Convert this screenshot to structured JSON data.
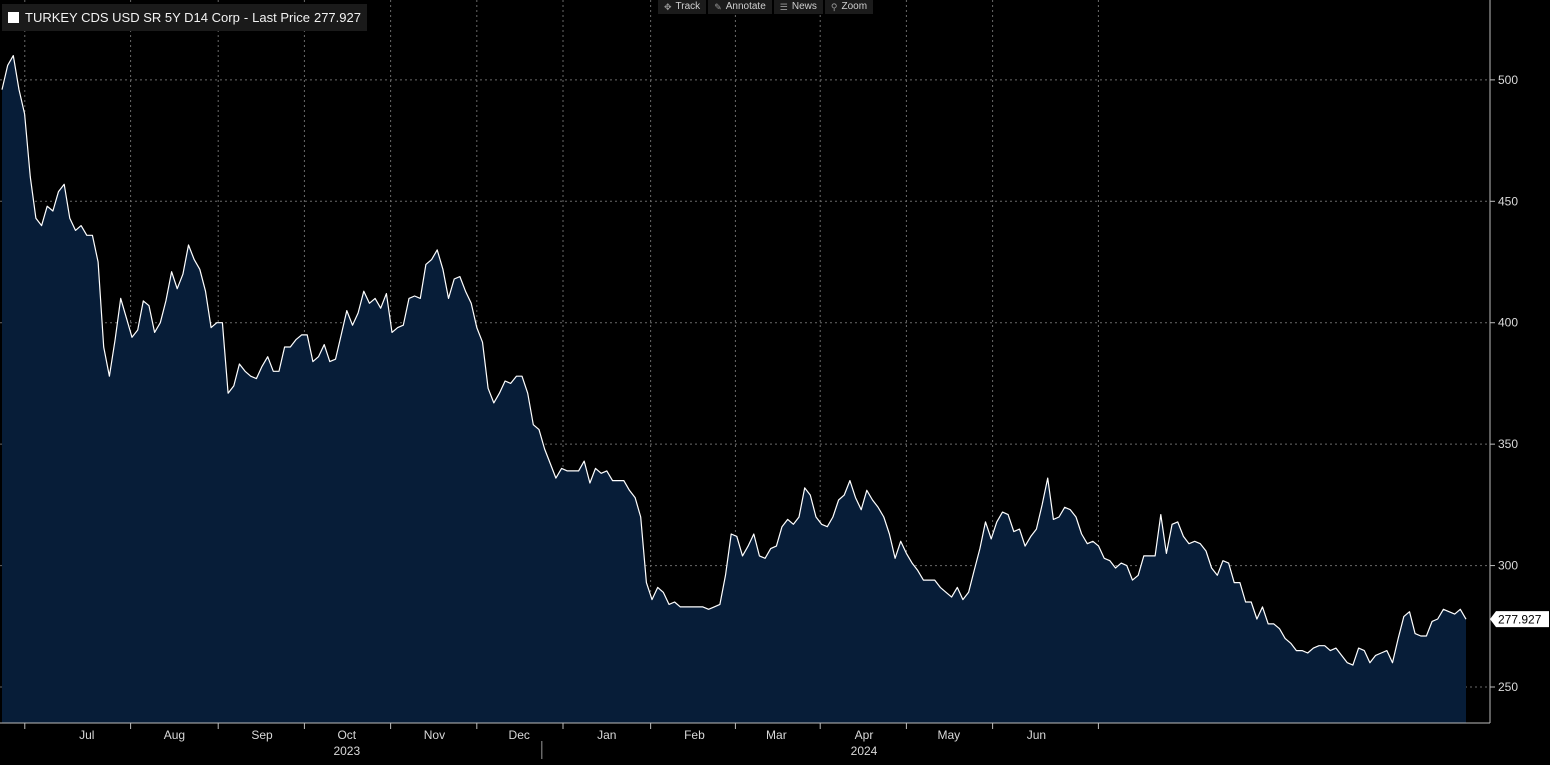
{
  "toolbar": {
    "items": [
      {
        "label": "Track",
        "icon": "crosshair-icon"
      },
      {
        "label": "Annotate",
        "icon": "pencil-icon"
      },
      {
        "label": "News",
        "icon": "news-icon"
      },
      {
        "label": "Zoom",
        "icon": "magnifier-icon"
      }
    ]
  },
  "legend": {
    "series_name": "TURKEY CDS USD SR 5Y D14 Corp",
    "separator": "-",
    "value_label": "Last Price",
    "value": "277.927",
    "color": "#ffffff"
  },
  "colors": {
    "background": "#000000",
    "line": "#ffffff",
    "fill": "#071d38",
    "grid": "#6a6a6a",
    "last_price_tag_bg": "#ffffff",
    "last_price_tag_text": "#000000"
  },
  "chart_data": {
    "type": "area",
    "title": "",
    "xlabel": "",
    "ylabel": "",
    "ylim": [
      236,
      532
    ],
    "y_ticks": [
      250,
      300,
      350,
      400,
      450,
      500
    ],
    "x_ticks": [
      {
        "label": "Jul",
        "date": "2023-07-01"
      },
      {
        "label": "Aug",
        "date": "2023-08-01"
      },
      {
        "label": "Sep",
        "date": "2023-09-01"
      },
      {
        "label": "Oct",
        "date": "2023-10-01"
      },
      {
        "label": "Nov",
        "date": "2023-11-01"
      },
      {
        "label": "Dec",
        "date": "2023-12-01"
      },
      {
        "label": "Jan",
        "date": "2024-01-01"
      },
      {
        "label": "Feb",
        "date": "2024-02-01"
      },
      {
        "label": "Mar",
        "date": "2024-03-01"
      },
      {
        "label": "Apr",
        "date": "2024-04-01"
      },
      {
        "label": "May",
        "date": "2024-05-01"
      },
      {
        "label": "Jun",
        "date": "2024-06-01"
      }
    ],
    "year_labels": [
      {
        "label": "2023",
        "date": "2023-10-01"
      },
      {
        "label": "2024",
        "date": "2024-04-01"
      }
    ],
    "year_boundary": "2024-01-01",
    "grid": true,
    "legend_position": "top-left",
    "last_value": 277.927,
    "last_value_label": "277.927",
    "series": [
      {
        "name": "TURKEY CDS USD SR 5Y D14 Corp",
        "points": [
          [
            "2023-06-01",
            496
          ],
          [
            "2023-06-03",
            506
          ],
          [
            "2023-06-05",
            510
          ],
          [
            "2023-06-07",
            496
          ],
          [
            "2023-06-09",
            486
          ],
          [
            "2023-06-11",
            460
          ],
          [
            "2023-06-13",
            443
          ],
          [
            "2023-06-15",
            440
          ],
          [
            "2023-06-17",
            448
          ],
          [
            "2023-06-19",
            446
          ],
          [
            "2023-06-21",
            454
          ],
          [
            "2023-06-23",
            457
          ],
          [
            "2023-06-25",
            443
          ],
          [
            "2023-06-27",
            438
          ],
          [
            "2023-06-29",
            440
          ],
          [
            "2023-07-01",
            436
          ],
          [
            "2023-07-03",
            436
          ],
          [
            "2023-07-05",
            425
          ],
          [
            "2023-07-07",
            390
          ],
          [
            "2023-07-09",
            378
          ],
          [
            "2023-07-11",
            393
          ],
          [
            "2023-07-13",
            410
          ],
          [
            "2023-07-15",
            402
          ],
          [
            "2023-07-17",
            394
          ],
          [
            "2023-07-19",
            397
          ],
          [
            "2023-07-21",
            409
          ],
          [
            "2023-07-23",
            407
          ],
          [
            "2023-07-25",
            396
          ],
          [
            "2023-07-27",
            400
          ],
          [
            "2023-07-29",
            409
          ],
          [
            "2023-07-31",
            421
          ],
          [
            "2023-08-02",
            414
          ],
          [
            "2023-08-04",
            420
          ],
          [
            "2023-08-06",
            432
          ],
          [
            "2023-08-08",
            426
          ],
          [
            "2023-08-10",
            422
          ],
          [
            "2023-08-12",
            413
          ],
          [
            "2023-08-14",
            398
          ],
          [
            "2023-08-16",
            400
          ],
          [
            "2023-08-18",
            400
          ],
          [
            "2023-08-20",
            371
          ],
          [
            "2023-08-22",
            374
          ],
          [
            "2023-08-24",
            383
          ],
          [
            "2023-08-26",
            380
          ],
          [
            "2023-08-28",
            378
          ],
          [
            "2023-08-30",
            377
          ],
          [
            "2023-09-01",
            382
          ],
          [
            "2023-09-03",
            386
          ],
          [
            "2023-09-05",
            380
          ],
          [
            "2023-09-07",
            380
          ],
          [
            "2023-09-09",
            390
          ],
          [
            "2023-09-11",
            390
          ],
          [
            "2023-09-13",
            393
          ],
          [
            "2023-09-15",
            395
          ],
          [
            "2023-09-17",
            395
          ],
          [
            "2023-09-19",
            384
          ],
          [
            "2023-09-21",
            386
          ],
          [
            "2023-09-23",
            391
          ],
          [
            "2023-09-25",
            384
          ],
          [
            "2023-09-27",
            385
          ],
          [
            "2023-09-29",
            395
          ],
          [
            "2023-10-01",
            405
          ],
          [
            "2023-10-03",
            399
          ],
          [
            "2023-10-05",
            404
          ],
          [
            "2023-10-07",
            413
          ],
          [
            "2023-10-09",
            408
          ],
          [
            "2023-10-11",
            410
          ],
          [
            "2023-10-13",
            406
          ],
          [
            "2023-10-15",
            412
          ],
          [
            "2023-10-17",
            396
          ],
          [
            "2023-10-19",
            398
          ],
          [
            "2023-10-21",
            399
          ],
          [
            "2023-10-23",
            410
          ],
          [
            "2023-10-25",
            411
          ],
          [
            "2023-10-27",
            410
          ],
          [
            "2023-10-29",
            424
          ],
          [
            "2023-10-31",
            426
          ],
          [
            "2023-11-02",
            430
          ],
          [
            "2023-11-04",
            422
          ],
          [
            "2023-11-06",
            410
          ],
          [
            "2023-11-08",
            418
          ],
          [
            "2023-11-10",
            419
          ],
          [
            "2023-11-12",
            413
          ],
          [
            "2023-11-14",
            408
          ],
          [
            "2023-11-16",
            398
          ],
          [
            "2023-11-18",
            392
          ],
          [
            "2023-11-20",
            373
          ],
          [
            "2023-11-22",
            367
          ],
          [
            "2023-11-24",
            371
          ],
          [
            "2023-11-26",
            376
          ],
          [
            "2023-11-28",
            375
          ],
          [
            "2023-11-30",
            378
          ],
          [
            "2023-12-02",
            378
          ],
          [
            "2023-12-04",
            371
          ],
          [
            "2023-12-06",
            358
          ],
          [
            "2023-12-08",
            356
          ],
          [
            "2023-12-10",
            348
          ],
          [
            "2023-12-12",
            342
          ],
          [
            "2023-12-14",
            336
          ],
          [
            "2023-12-16",
            340
          ],
          [
            "2023-12-18",
            339
          ],
          [
            "2023-12-20",
            339
          ],
          [
            "2023-12-22",
            339
          ],
          [
            "2023-12-24",
            343
          ],
          [
            "2023-12-26",
            334
          ],
          [
            "2023-12-28",
            340
          ],
          [
            "2023-12-30",
            338
          ],
          [
            "2024-01-01",
            339
          ],
          [
            "2024-01-03",
            335
          ],
          [
            "2024-01-05",
            335
          ],
          [
            "2024-01-07",
            335
          ],
          [
            "2024-01-09",
            331
          ],
          [
            "2024-01-11",
            328
          ],
          [
            "2024-01-13",
            320
          ],
          [
            "2024-01-15",
            293
          ],
          [
            "2024-01-17",
            286
          ],
          [
            "2024-01-19",
            291
          ],
          [
            "2024-01-21",
            289
          ],
          [
            "2024-01-23",
            284
          ],
          [
            "2024-01-25",
            285
          ],
          [
            "2024-01-27",
            283
          ],
          [
            "2024-01-29",
            283
          ],
          [
            "2024-01-31",
            283
          ],
          [
            "2024-02-02",
            283
          ],
          [
            "2024-02-04",
            283
          ],
          [
            "2024-02-06",
            282
          ],
          [
            "2024-02-08",
            283
          ],
          [
            "2024-02-10",
            284
          ],
          [
            "2024-02-12",
            296
          ],
          [
            "2024-02-14",
            313
          ],
          [
            "2024-02-16",
            312
          ],
          [
            "2024-02-18",
            304
          ],
          [
            "2024-02-20",
            308
          ],
          [
            "2024-02-22",
            313
          ],
          [
            "2024-02-24",
            304
          ],
          [
            "2024-02-26",
            303
          ],
          [
            "2024-02-28",
            307
          ],
          [
            "2024-03-01",
            308
          ],
          [
            "2024-03-03",
            316
          ],
          [
            "2024-03-05",
            319
          ],
          [
            "2024-03-07",
            317
          ],
          [
            "2024-03-09",
            320
          ],
          [
            "2024-03-11",
            332
          ],
          [
            "2024-03-13",
            329
          ],
          [
            "2024-03-15",
            320
          ],
          [
            "2024-03-17",
            317
          ],
          [
            "2024-03-19",
            316
          ],
          [
            "2024-03-21",
            320
          ],
          [
            "2024-03-23",
            327
          ],
          [
            "2024-03-25",
            329
          ],
          [
            "2024-03-27",
            335
          ],
          [
            "2024-03-29",
            328
          ],
          [
            "2024-03-31",
            323
          ],
          [
            "2024-04-02",
            331
          ],
          [
            "2024-04-04",
            327
          ],
          [
            "2024-04-06",
            324
          ],
          [
            "2024-04-08",
            320
          ],
          [
            "2024-04-10",
            313
          ],
          [
            "2024-04-12",
            303
          ],
          [
            "2024-04-14",
            310
          ],
          [
            "2024-04-16",
            305
          ],
          [
            "2024-04-18",
            301
          ],
          [
            "2024-04-20",
            298
          ],
          [
            "2024-04-22",
            294
          ],
          [
            "2024-04-24",
            294
          ],
          [
            "2024-04-26",
            294
          ],
          [
            "2024-04-28",
            291
          ],
          [
            "2024-04-30",
            289
          ],
          [
            "2024-05-02",
            287
          ],
          [
            "2024-05-04",
            291
          ],
          [
            "2024-05-06",
            286
          ],
          [
            "2024-05-08",
            289
          ],
          [
            "2024-05-10",
            298
          ],
          [
            "2024-05-12",
            307
          ],
          [
            "2024-05-14",
            318
          ],
          [
            "2024-05-16",
            311
          ],
          [
            "2024-05-18",
            318
          ],
          [
            "2024-05-20",
            322
          ],
          [
            "2024-05-22",
            321
          ],
          [
            "2024-05-24",
            314
          ],
          [
            "2024-05-26",
            315
          ],
          [
            "2024-05-28",
            308
          ],
          [
            "2024-05-30",
            312
          ],
          [
            "2024-06-01",
            315
          ],
          [
            "2024-06-03",
            325
          ],
          [
            "2024-06-05",
            336
          ],
          [
            "2024-06-07",
            319
          ],
          [
            "2024-06-09",
            320
          ],
          [
            "2024-06-11",
            324
          ],
          [
            "2024-06-13",
            323
          ],
          [
            "2024-06-15",
            320
          ],
          [
            "2024-06-17",
            313
          ],
          [
            "2024-06-19",
            309
          ],
          [
            "2024-06-21",
            310
          ],
          [
            "2024-06-23",
            308
          ],
          [
            "2024-06-25",
            303
          ],
          [
            "2024-06-27",
            302
          ],
          [
            "2024-06-29",
            299
          ],
          [
            "2024-07-01",
            301
          ],
          [
            "2024-07-03",
            300
          ],
          [
            "2024-07-05",
            294
          ],
          [
            "2024-07-07",
            296
          ],
          [
            "2024-07-09",
            304
          ],
          [
            "2024-07-11",
            304
          ],
          [
            "2024-07-13",
            304
          ],
          [
            "2024-07-15",
            321
          ],
          [
            "2024-07-17",
            305
          ],
          [
            "2024-07-19",
            317
          ],
          [
            "2024-07-21",
            318
          ],
          [
            "2024-07-23",
            312
          ],
          [
            "2024-07-25",
            309
          ],
          [
            "2024-07-27",
            310
          ],
          [
            "2024-07-29",
            309
          ],
          [
            "2024-07-31",
            306
          ],
          [
            "2024-08-02",
            299
          ],
          [
            "2024-08-04",
            296
          ],
          [
            "2024-08-06",
            302
          ],
          [
            "2024-08-08",
            301
          ],
          [
            "2024-08-10",
            293
          ],
          [
            "2024-08-12",
            293
          ],
          [
            "2024-08-14",
            285
          ],
          [
            "2024-08-16",
            285
          ],
          [
            "2024-08-18",
            278
          ],
          [
            "2024-08-20",
            283
          ],
          [
            "2024-08-22",
            276
          ],
          [
            "2024-08-24",
            276
          ],
          [
            "2024-08-26",
            274
          ],
          [
            "2024-08-28",
            270
          ],
          [
            "2024-08-30",
            268
          ],
          [
            "2024-09-01",
            265
          ],
          [
            "2024-09-03",
            265
          ],
          [
            "2024-09-05",
            264
          ],
          [
            "2024-09-07",
            266
          ],
          [
            "2024-09-09",
            267
          ],
          [
            "2024-09-11",
            267
          ],
          [
            "2024-09-13",
            265
          ],
          [
            "2024-09-15",
            266
          ],
          [
            "2024-09-17",
            263
          ],
          [
            "2024-09-19",
            260
          ],
          [
            "2024-09-21",
            259
          ],
          [
            "2024-09-23",
            266
          ],
          [
            "2024-09-25",
            265
          ],
          [
            "2024-09-27",
            260
          ],
          [
            "2024-09-29",
            263
          ],
          [
            "2024-10-01",
            264
          ],
          [
            "2024-10-03",
            265
          ],
          [
            "2024-10-05",
            260
          ],
          [
            "2024-10-07",
            270
          ],
          [
            "2024-10-09",
            279
          ],
          [
            "2024-10-11",
            281
          ],
          [
            "2024-10-13",
            272
          ],
          [
            "2024-10-15",
            271
          ],
          [
            "2024-10-17",
            271
          ],
          [
            "2024-10-19",
            277
          ],
          [
            "2024-10-21",
            278
          ],
          [
            "2024-10-23",
            282
          ],
          [
            "2024-10-25",
            281
          ],
          [
            "2024-10-27",
            280
          ],
          [
            "2024-10-29",
            282
          ],
          [
            "2024-10-31",
            277.927
          ]
        ]
      }
    ]
  }
}
